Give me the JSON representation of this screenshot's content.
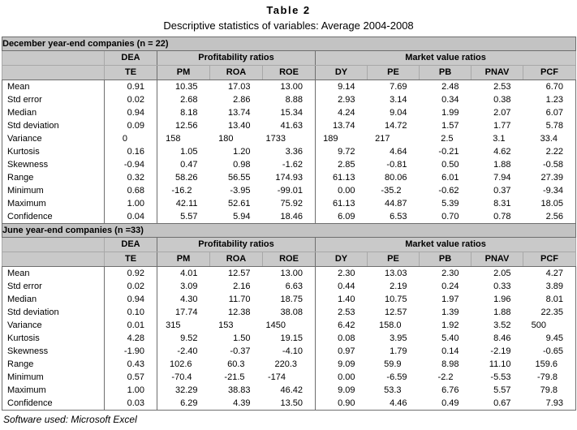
{
  "title": "Table 2",
  "subtitle": "Descriptive statistics of variables: Average 2004-2008",
  "footer": "Software used: Microsoft Excel",
  "colors": {
    "page_bg": "#ffffff",
    "section_header_bg": "#c3c3c3",
    "column_header_bg": "#c9c9c9",
    "border_strong": "#6e6e6e",
    "border_light": "#a8a8a8",
    "text": "#000000"
  },
  "columns": {
    "dea_group": "DEA",
    "profitability_group": "Profitability ratios",
    "market_group": "Market value ratios",
    "sub": [
      "TE",
      "PM",
      "ROA",
      "ROE",
      "DY",
      "PE",
      "PB",
      "PNAV",
      "PCF"
    ]
  },
  "sections": [
    {
      "header": "December year-end companies (n = 22)",
      "rows": [
        {
          "label": "Mean",
          "values": [
            "0.91",
            "10.35",
            "17.03",
            "13.00",
            "9.14",
            "7.69",
            "2.48",
            "2.53",
            "6.70"
          ]
        },
        {
          "label": "Std error",
          "values": [
            "0.02",
            "2.68",
            "2.86",
            "8.88",
            "2.93",
            "3.14",
            "0.34",
            "0.38",
            "1.23"
          ]
        },
        {
          "label": "Median",
          "values": [
            "0.94",
            "8.18",
            "13.74",
            "15.34",
            "4.24",
            "9.04",
            "1.99",
            "2.07",
            "6.07"
          ]
        },
        {
          "label": "Std deviation",
          "values": [
            "0.09",
            "12.56",
            "13.40",
            "41.63",
            "13.74",
            "14.72",
            "1.57",
            "1.77",
            "5.78"
          ]
        },
        {
          "label": "Variance",
          "values": [
            "0",
            "158",
            "180",
            "1733",
            "189",
            "217",
            "2.5",
            "3.1",
            "33.4"
          ]
        },
        {
          "label": "Kurtosis",
          "values": [
            "0.16",
            "1.05",
            "1.20",
            "3.36",
            "9.72",
            "4.64",
            "-0.21",
            "4.62",
            "2.22"
          ]
        },
        {
          "label": "Skewness",
          "values": [
            "-0.94",
            "0.47",
            "0.98",
            "-1.62",
            "2.85",
            "-0.81",
            "0.50",
            "1.88",
            "-0.58"
          ]
        },
        {
          "label": "Range",
          "values": [
            "0.32",
            "58.26",
            "56.55",
            "174.93",
            "61.13",
            "80.06",
            "6.01",
            "7.94",
            "27.39"
          ]
        },
        {
          "label": "Minimum",
          "values": [
            "0.68",
            "-16.2",
            "-3.95",
            "-99.01",
            "0.00",
            "-35.2",
            "-0.62",
            "0.37",
            "-9.34"
          ]
        },
        {
          "label": "Maximum",
          "values": [
            "1.00",
            "42.11",
            "52.61",
            "75.92",
            "61.13",
            "44.87",
            "5.39",
            "8.31",
            "18.05"
          ]
        },
        {
          "label": "Confidence",
          "values": [
            "0.04",
            "5.57",
            "5.94",
            "18.46",
            "6.09",
            "6.53",
            "0.70",
            "0.78",
            "2.56"
          ]
        }
      ]
    },
    {
      "header": "June year-end companies (n =33)",
      "rows": [
        {
          "label": "Mean",
          "values": [
            "0.92",
            "4.01",
            "12.57",
            "13.00",
            "2.30",
            "13.03",
            "2.30",
            "2.05",
            "4.27"
          ]
        },
        {
          "label": "Std error",
          "values": [
            "0.02",
            "3.09",
            "2.16",
            "6.63",
            "0.44",
            "2.19",
            "0.24",
            "0.33",
            "3.89"
          ]
        },
        {
          "label": "Median",
          "values": [
            "0.94",
            "4.30",
            "11.70",
            "18.75",
            "1.40",
            "10.75",
            "1.97",
            "1.96",
            "8.01"
          ]
        },
        {
          "label": "Std deviation",
          "values": [
            "0.10",
            "17.74",
            "12.38",
            "38.08",
            "2.53",
            "12.57",
            "1.39",
            "1.88",
            "22.35"
          ]
        },
        {
          "label": "Variance",
          "values": [
            "0.01",
            "315",
            "153",
            "1450",
            "6.42",
            "158.0",
            "1.92",
            "3.52",
            "500"
          ]
        },
        {
          "label": "Kurtosis",
          "values": [
            "4.28",
            "9.52",
            "1.50",
            "19.15",
            "0.08",
            "3.95",
            "5.40",
            "8.46",
            "9.45"
          ]
        },
        {
          "label": "Skewness",
          "values": [
            "-1.90",
            "-2.40",
            "-0.37",
            "-4.10",
            "0.97",
            "1.79",
            "0.14",
            "-2.19",
            "-0.65"
          ]
        },
        {
          "label": "Range",
          "values": [
            "0.43",
            "102.6",
            "60.3",
            "220.3",
            "9.09",
            "59.9",
            "8.98",
            "11.10",
            "159.6"
          ]
        },
        {
          "label": "Minimum",
          "values": [
            "0.57",
            "-70.4",
            "-21.5",
            "-174",
            "0.00",
            "-6.59",
            "-2.2",
            "-5.53",
            "-79.8"
          ]
        },
        {
          "label": "Maximum",
          "values": [
            "1.00",
            "32.29",
            "38.83",
            "46.42",
            "9.09",
            "53.3",
            "6.76",
            "5.57",
            "79.8"
          ]
        },
        {
          "label": "Confidence",
          "values": [
            "0.03",
            "6.29",
            "4.39",
            "13.50",
            "0.90",
            "4.46",
            "0.49",
            "0.67",
            "7.93"
          ]
        }
      ]
    }
  ]
}
